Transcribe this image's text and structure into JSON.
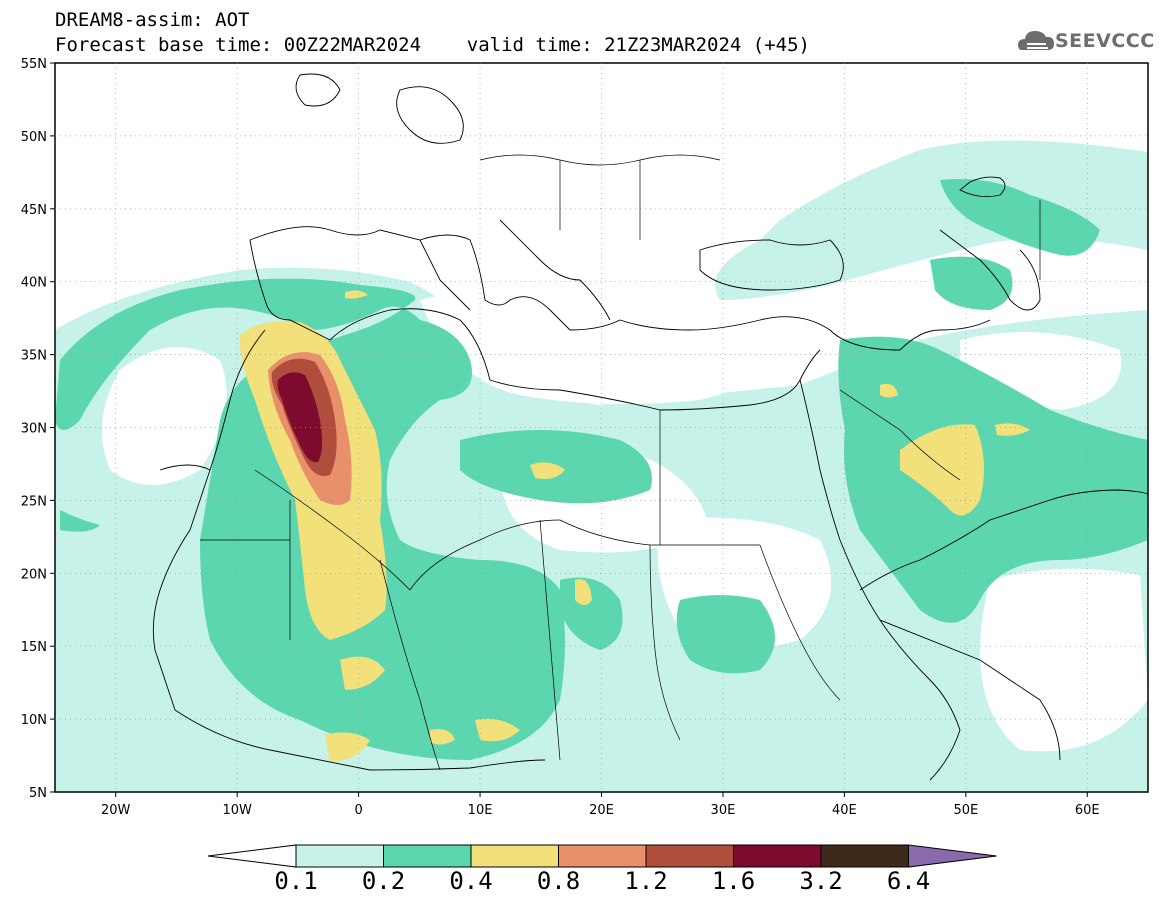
{
  "title": {
    "line1": "DREAM8-assim: AOT",
    "line2": "Forecast base time: 00Z22MAR2024    valid time: 21Z23MAR2024 (+45)"
  },
  "logo": {
    "text": "SEEVCCC",
    "icon": "cloud-icon",
    "color": "#6d6d6d"
  },
  "map": {
    "lat_labels": [
      "55N",
      "50N",
      "45N",
      "40N",
      "35N",
      "30N",
      "25N",
      "20N",
      "15N",
      "10N",
      "5N"
    ],
    "lon_labels": [
      "20W",
      "10W",
      "0",
      "10E",
      "20E",
      "30E",
      "40E",
      "50E",
      "60E"
    ],
    "lat_range": [
      5,
      55
    ],
    "lon_range": [
      -25,
      65
    ],
    "grid": "dotted"
  },
  "colorbar": {
    "labels": [
      "0.1",
      "0.2",
      "0.4",
      "0.8",
      "1.2",
      "1.6",
      "3.2",
      "6.4"
    ],
    "colors": [
      "#ffffff",
      "#c6f2ea",
      "#5cd6ae",
      "#f2e07a",
      "#e8906a",
      "#b04e3e",
      "#7e0a2e",
      "#3e2a1a",
      "#8a6aaa"
    ]
  }
}
